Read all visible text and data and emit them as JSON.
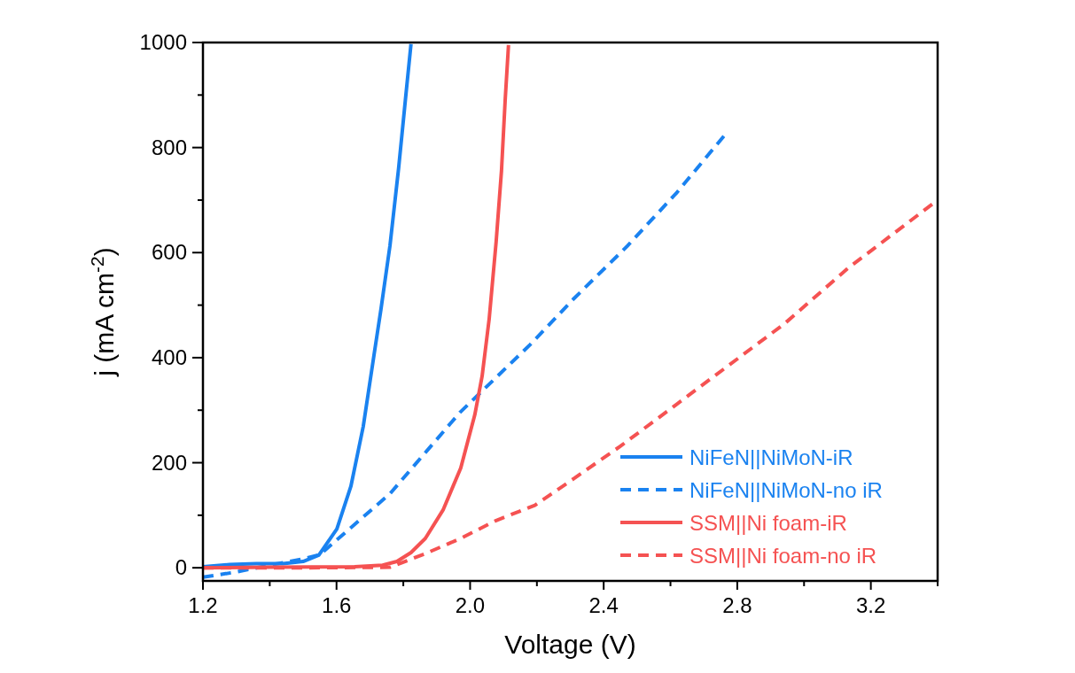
{
  "chart_data": {
    "type": "line",
    "xlabel": "Voltage (V)",
    "ylabel": "j (mA cm$^{-2}$)",
    "xlim": [
      1.2,
      3.4
    ],
    "ylim": [
      -25,
      1000
    ],
    "xticks": [
      1.2,
      {
        "value": 1.4,
        "label": null
      },
      1.6,
      {
        "value": 1.8,
        "label": null
      },
      {
        "value": 2.0,
        "label": "2.0"
      },
      {
        "value": 2.2,
        "label": null
      },
      2.4,
      {
        "value": 2.6,
        "label": null
      },
      2.8,
      {
        "value": 3.0,
        "label": null
      },
      3.2,
      {
        "value": 3.4,
        "label": null
      }
    ],
    "yticks": [
      0,
      {
        "value": 100,
        "label": null
      },
      200,
      {
        "value": 300,
        "label": null
      },
      400,
      {
        "value": 500,
        "label": null
      },
      600,
      {
        "value": 700,
        "label": null
      },
      800,
      {
        "value": 900,
        "label": null
      },
      1000
    ],
    "legend": "bottom right",
    "grid": false,
    "series": [
      {
        "name": "NiFeN||NiMoN-iR",
        "color": "#1a82f0",
        "line_style": "solid",
        "x": [
          1.2,
          1.28,
          1.36,
          1.44,
          1.5,
          1.547,
          1.601,
          1.643,
          1.68,
          1.712,
          1.733,
          1.76,
          1.786,
          1.807,
          1.823
        ],
        "values": [
          2,
          6,
          8,
          8,
          12,
          24,
          74,
          155,
          269,
          404,
          492,
          613,
          761,
          896,
          997
        ]
      },
      {
        "name": "NiFeN||NiMoN-no iR",
        "color": "#1a82f0",
        "line_style": "dashed",
        "x": [
          1.2,
          1.3,
          1.4,
          1.5,
          1.55,
          1.76,
          1.97,
          2.18,
          2.31,
          2.47,
          2.62,
          2.764
        ],
        "values": [
          -18,
          -8,
          5,
          17,
          25,
          141,
          296,
          425,
          512,
          612,
          715,
          825
        ]
      },
      {
        "name": "SSM||Ni foam-iR",
        "color": "#f55252",
        "line_style": "solid",
        "x": [
          1.2,
          1.4,
          1.654,
          1.738,
          1.781,
          1.823,
          1.866,
          1.919,
          1.972,
          2.014,
          2.036,
          2.057,
          2.078,
          2.094,
          2.105,
          2.115
        ],
        "values": [
          0,
          1,
          2,
          5,
          12,
          29,
          56,
          110,
          190,
          291,
          365,
          473,
          621,
          756,
          890,
          995
        ]
      },
      {
        "name": "SSM||Ni foam-no iR",
        "color": "#f55252",
        "line_style": "dashed",
        "x": [
          1.2,
          1.5,
          1.76,
          1.866,
          1.972,
          2.078,
          2.194,
          2.311,
          2.449,
          2.658,
          2.942,
          3.131,
          3.4
        ],
        "values": [
          0,
          0,
          1,
          27,
          56,
          90,
          119,
          170,
          231,
          330,
          465,
          570,
          700
        ]
      }
    ]
  }
}
